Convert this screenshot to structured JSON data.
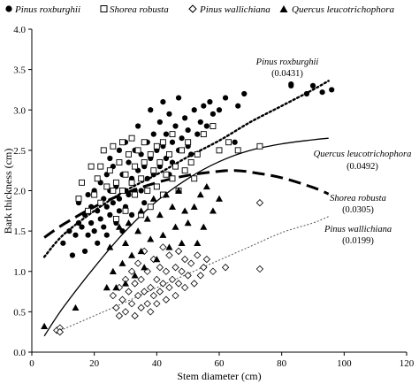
{
  "chart_data": {
    "type": "scatter",
    "xlabel": "Stem diameter (cm)",
    "ylabel": "Bark thickness (cm)",
    "xlim": [
      0,
      120
    ],
    "ylim": [
      0,
      4.0
    ],
    "xticks": [
      "0",
      "20",
      "40",
      "60",
      "80",
      "100",
      "120"
    ],
    "yticks": [
      "0.0",
      "0.5",
      "1.0",
      "1.5",
      "2.0",
      "2.5",
      "3.0",
      "3.5",
      "4.0"
    ],
    "grid": false,
    "legend_position": "top",
    "series": [
      {
        "name": "Pinus roxburghii",
        "marker": "filled-circle",
        "curve_label": "Pinus roxburghii",
        "curve_value": "(0.0431)",
        "curve_style": "dotted-thick",
        "curve_points": [
          [
            4,
            1.18
          ],
          [
            10,
            1.45
          ],
          [
            20,
            1.75
          ],
          [
            30,
            2.0
          ],
          [
            40,
            2.2
          ],
          [
            50,
            2.42
          ],
          [
            60,
            2.62
          ],
          [
            70,
            2.85
          ],
          [
            80,
            3.05
          ],
          [
            90,
            3.25
          ],
          [
            95,
            3.36
          ]
        ],
        "points": [
          [
            10,
            1.35
          ],
          [
            12,
            1.5
          ],
          [
            13,
            1.2
          ],
          [
            14,
            1.45
          ],
          [
            15,
            1.6
          ],
          [
            15,
            1.85
          ],
          [
            16,
            1.55
          ],
          [
            17,
            1.7
          ],
          [
            17,
            1.25
          ],
          [
            18,
            1.45
          ],
          [
            18,
            1.95
          ],
          [
            19,
            1.8
          ],
          [
            19,
            1.6
          ],
          [
            20,
            2.0
          ],
          [
            20,
            1.5
          ],
          [
            21,
            1.75
          ],
          [
            21,
            1.35
          ],
          [
            22,
            2.1
          ],
          [
            22,
            1.65
          ],
          [
            23,
            1.9
          ],
          [
            23,
            1.55
          ],
          [
            24,
            2.2
          ],
          [
            24,
            1.8
          ],
          [
            24,
            1.45
          ],
          [
            25,
            2.4
          ],
          [
            25,
            2.0
          ],
          [
            25,
            1.7
          ],
          [
            26,
            1.85
          ],
          [
            26,
            2.3
          ],
          [
            27,
            1.6
          ],
          [
            27,
            2.05
          ],
          [
            28,
            2.5
          ],
          [
            28,
            1.9
          ],
          [
            28,
            1.75
          ],
          [
            29,
            2.2
          ],
          [
            29,
            1.5
          ],
          [
            30,
            2.6
          ],
          [
            30,
            2.0
          ],
          [
            30,
            1.8
          ],
          [
            31,
            2.35
          ],
          [
            31,
            1.95
          ],
          [
            32,
            2.15
          ],
          [
            32,
            1.7
          ],
          [
            33,
            2.5
          ],
          [
            33,
            2.0
          ],
          [
            34,
            2.25
          ],
          [
            34,
            2.8
          ],
          [
            35,
            2.0
          ],
          [
            35,
            2.45
          ],
          [
            36,
            2.3
          ],
          [
            36,
            1.85
          ],
          [
            37,
            2.6
          ],
          [
            37,
            2.15
          ],
          [
            38,
            2.4
          ],
          [
            38,
            3.0
          ],
          [
            39,
            2.2
          ],
          [
            39,
            2.7
          ],
          [
            40,
            2.5
          ],
          [
            40,
            2.05
          ],
          [
            41,
            2.85
          ],
          [
            41,
            2.3
          ],
          [
            42,
            2.55
          ],
          [
            42,
            3.1
          ],
          [
            43,
            2.4
          ],
          [
            43,
            2.7
          ],
          [
            44,
            2.2
          ],
          [
            44,
            2.95
          ],
          [
            45,
            2.6
          ],
          [
            45,
            2.35
          ],
          [
            46,
            2.8
          ],
          [
            47,
            2.5
          ],
          [
            47,
            3.15
          ],
          [
            48,
            2.65
          ],
          [
            49,
            2.9
          ],
          [
            50,
            2.55
          ],
          [
            50,
            2.75
          ],
          [
            51,
            2.45
          ],
          [
            52,
            3.0
          ],
          [
            53,
            2.7
          ],
          [
            54,
            2.85
          ],
          [
            55,
            3.05
          ],
          [
            56,
            2.8
          ],
          [
            57,
            3.1
          ],
          [
            58,
            2.95
          ],
          [
            60,
            3.0
          ],
          [
            62,
            3.15
          ],
          [
            65,
            2.6
          ],
          [
            66,
            3.05
          ],
          [
            68,
            3.2
          ],
          [
            83,
            3.3
          ],
          [
            83,
            3.32
          ],
          [
            88,
            3.2
          ],
          [
            90,
            3.3
          ],
          [
            93,
            3.22
          ],
          [
            96,
            3.25
          ]
        ]
      },
      {
        "name": "Shorea robusta",
        "marker": "open-square",
        "curve_label": "Shorea robusta",
        "curve_value": "(0.0305)",
        "curve_style": "dashed-thick",
        "curve_points": [
          [
            4,
            1.42
          ],
          [
            10,
            1.58
          ],
          [
            20,
            1.8
          ],
          [
            30,
            1.97
          ],
          [
            40,
            2.1
          ],
          [
            50,
            2.19
          ],
          [
            60,
            2.24
          ],
          [
            65,
            2.25
          ],
          [
            70,
            2.23
          ],
          [
            80,
            2.16
          ],
          [
            90,
            2.04
          ],
          [
            95,
            1.96
          ]
        ],
        "points": [
          [
            15,
            1.9
          ],
          [
            16,
            2.1
          ],
          [
            18,
            1.75
          ],
          [
            19,
            2.3
          ],
          [
            20,
            1.95
          ],
          [
            21,
            2.15
          ],
          [
            22,
            2.3
          ],
          [
            22,
            1.85
          ],
          [
            23,
            2.5
          ],
          [
            24,
            2.05
          ],
          [
            25,
            2.25
          ],
          [
            26,
            2.0
          ],
          [
            26,
            2.55
          ],
          [
            27,
            2.1
          ],
          [
            27,
            1.65
          ],
          [
            28,
            2.35
          ],
          [
            29,
            2.0
          ],
          [
            29,
            2.6
          ],
          [
            30,
            2.2
          ],
          [
            30,
            1.75
          ],
          [
            31,
            2.45
          ],
          [
            32,
            2.1
          ],
          [
            32,
            2.65
          ],
          [
            33,
            1.95
          ],
          [
            33,
            2.3
          ],
          [
            34,
            2.5
          ],
          [
            35,
            2.15
          ],
          [
            35,
            1.7
          ],
          [
            36,
            2.35
          ],
          [
            36,
            2.6
          ],
          [
            37,
            2.0
          ],
          [
            38,
            2.45
          ],
          [
            38,
            1.8
          ],
          [
            39,
            2.25
          ],
          [
            40,
            2.55
          ],
          [
            40,
            2.05
          ],
          [
            41,
            2.35
          ],
          [
            42,
            1.95
          ],
          [
            42,
            2.6
          ],
          [
            43,
            2.2
          ],
          [
            44,
            2.45
          ],
          [
            45,
            2.15
          ],
          [
            45,
            2.7
          ],
          [
            46,
            2.3
          ],
          [
            47,
            2.0
          ],
          [
            48,
            2.5
          ],
          [
            49,
            2.25
          ],
          [
            50,
            2.6
          ],
          [
            51,
            2.35
          ],
          [
            52,
            2.15
          ],
          [
            53,
            2.45
          ],
          [
            55,
            2.7
          ],
          [
            58,
            2.8
          ],
          [
            60,
            2.5
          ],
          [
            63,
            2.6
          ],
          [
            66,
            2.5
          ],
          [
            73,
            2.55
          ]
        ]
      },
      {
        "name": "Pinus wallichiana",
        "marker": "open-diamond",
        "curve_label": "Pinus wallichiana",
        "curve_value": "(0.0199)",
        "curve_style": "dotted-thin",
        "curve_points": [
          [
            8,
            0.25
          ],
          [
            20,
            0.45
          ],
          [
            30,
            0.62
          ],
          [
            40,
            0.8
          ],
          [
            50,
            0.97
          ],
          [
            60,
            1.14
          ],
          [
            70,
            1.31
          ],
          [
            80,
            1.48
          ],
          [
            90,
            1.6
          ],
          [
            95,
            1.68
          ]
        ],
        "points": [
          [
            8,
            0.27
          ],
          [
            9,
            0.3
          ],
          [
            9,
            0.25
          ],
          [
            26,
            0.7
          ],
          [
            27,
            0.55
          ],
          [
            28,
            0.8
          ],
          [
            28,
            0.45
          ],
          [
            29,
            0.65
          ],
          [
            30,
            0.9
          ],
          [
            30,
            0.5
          ],
          [
            31,
            0.75
          ],
          [
            32,
            0.6
          ],
          [
            32,
            1.0
          ],
          [
            33,
            0.85
          ],
          [
            33,
            0.45
          ],
          [
            34,
            0.7
          ],
          [
            34,
            1.1
          ],
          [
            35,
            0.55
          ],
          [
            35,
            0.9
          ],
          [
            36,
            0.75
          ],
          [
            36,
            1.25
          ],
          [
            37,
            0.6
          ],
          [
            37,
            1.0
          ],
          [
            38,
            0.8
          ],
          [
            38,
            0.5
          ],
          [
            39,
            1.15
          ],
          [
            39,
            0.7
          ],
          [
            40,
            0.9
          ],
          [
            40,
            0.6
          ],
          [
            41,
            1.05
          ],
          [
            41,
            0.75
          ],
          [
            42,
            1.3
          ],
          [
            42,
            0.85
          ],
          [
            43,
            0.65
          ],
          [
            43,
            1.0
          ],
          [
            44,
            0.8
          ],
          [
            44,
            1.2
          ],
          [
            45,
            0.9
          ],
          [
            46,
            1.05
          ],
          [
            46,
            0.7
          ],
          [
            47,
            1.25
          ],
          [
            47,
            0.85
          ],
          [
            48,
            1.0
          ],
          [
            49,
            0.8
          ],
          [
            49,
            1.15
          ],
          [
            50,
            0.95
          ],
          [
            51,
            1.1
          ],
          [
            52,
            0.85
          ],
          [
            53,
            1.2
          ],
          [
            54,
            0.95
          ],
          [
            55,
            1.05
          ],
          [
            56,
            1.15
          ],
          [
            58,
            1.0
          ],
          [
            62,
            1.05
          ],
          [
            73,
            1.85
          ],
          [
            73,
            1.03
          ]
        ]
      },
      {
        "name": "Quercus leucotrichophora",
        "marker": "filled-triangle",
        "curve_label": "Quercus leucotrichophora",
        "curve_value": "(0.0492)",
        "curve_style": "solid",
        "curve_points": [
          [
            4,
            0.2
          ],
          [
            10,
            0.55
          ],
          [
            20,
            1.05
          ],
          [
            30,
            1.5
          ],
          [
            40,
            1.87
          ],
          [
            50,
            2.15
          ],
          [
            60,
            2.36
          ],
          [
            70,
            2.5
          ],
          [
            80,
            2.58
          ],
          [
            90,
            2.63
          ],
          [
            95,
            2.65
          ]
        ],
        "points": [
          [
            4,
            0.32
          ],
          [
            14,
            0.55
          ],
          [
            24,
            0.8
          ],
          [
            25,
            1.3
          ],
          [
            26,
            1.0
          ],
          [
            27,
            0.8
          ],
          [
            28,
            1.55
          ],
          [
            29,
            1.1
          ],
          [
            30,
            0.85
          ],
          [
            30,
            1.35
          ],
          [
            31,
            1.6
          ],
          [
            32,
            1.2
          ],
          [
            33,
            0.95
          ],
          [
            34,
            1.5
          ],
          [
            35,
            1.75
          ],
          [
            35,
            1.25
          ],
          [
            36,
            1.05
          ],
          [
            37,
            1.65
          ],
          [
            38,
            1.4
          ],
          [
            39,
            1.9
          ],
          [
            40,
            1.15
          ],
          [
            41,
            1.7
          ],
          [
            42,
            1.45
          ],
          [
            43,
            1.95
          ],
          [
            44,
            1.3
          ],
          [
            45,
            1.8
          ],
          [
            46,
            1.55
          ],
          [
            47,
            2.0
          ],
          [
            48,
            1.35
          ],
          [
            49,
            1.75
          ],
          [
            50,
            1.6
          ],
          [
            52,
            1.8
          ],
          [
            53,
            1.35
          ],
          [
            54,
            1.95
          ],
          [
            55,
            1.55
          ],
          [
            56,
            2.05
          ],
          [
            58,
            1.75
          ],
          [
            60,
            1.9
          ]
        ]
      }
    ]
  }
}
